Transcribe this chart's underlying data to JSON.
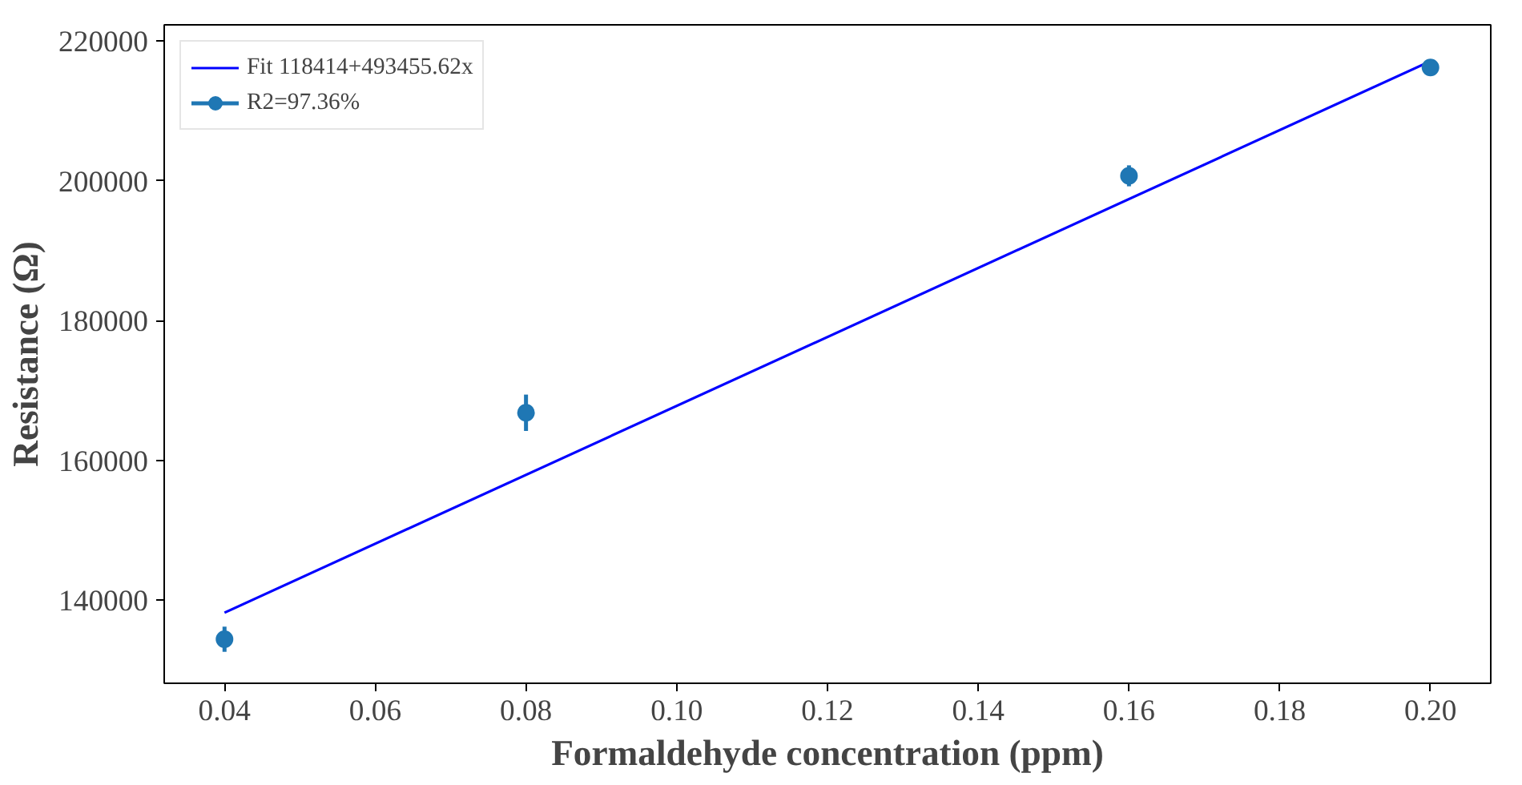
{
  "chart_data": {
    "type": "scatter",
    "xlabel": "Formaldehyde concentration (ppm)",
    "ylabel": "Resistance (Ω)",
    "xlim": [
      0.032,
      0.208
    ],
    "ylim": [
      128100,
      222300
    ],
    "xticks": [
      {
        "value": 0.04,
        "label": "0.04"
      },
      {
        "value": 0.06,
        "label": "0.06"
      },
      {
        "value": 0.08,
        "label": "0.08"
      },
      {
        "value": 0.1,
        "label": "0.10"
      },
      {
        "value": 0.12,
        "label": "0.12"
      },
      {
        "value": 0.14,
        "label": "0.14"
      },
      {
        "value": 0.16,
        "label": "0.16"
      },
      {
        "value": 0.18,
        "label": "0.18"
      },
      {
        "value": 0.2,
        "label": "0.20"
      }
    ],
    "yticks": [
      140000,
      160000,
      180000,
      200000,
      220000
    ],
    "grid": false,
    "legend": "top left",
    "series": [
      {
        "type": "line",
        "name": "Fit 118414+493455.62x",
        "color": "#0000ff",
        "x": [
          0.04,
          0.2
        ],
        "values": [
          138200,
          217100
        ],
        "line_style": "solid",
        "marker": "none"
      },
      {
        "name": "R2=97.36%",
        "color": "#1f77b4",
        "x": [
          0.04,
          0.08,
          0.16,
          0.2
        ],
        "values": [
          134400,
          166800,
          200700,
          216200
        ],
        "errors": [
          1800,
          2600,
          1500,
          500
        ],
        "marker": "circle"
      }
    ]
  }
}
